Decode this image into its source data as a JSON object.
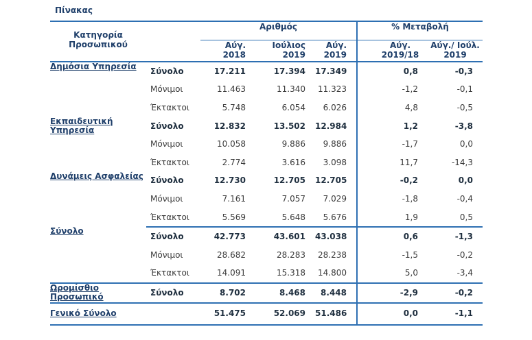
{
  "caption": "Πίνακας",
  "header": {
    "category": "Κατηγορία Προσωπικού",
    "group_number": "Αριθμός",
    "group_change": "% Μεταβολή",
    "col_aug2018": "Αύγ. 2018",
    "col_jul2019": "Ιούλιος 2019",
    "col_aug2019": "Αύγ. 2019",
    "col_pct_yoy": "Αύγ. 2019/18",
    "col_pct_mom": "Αύγ./ Ιούλ. 2019"
  },
  "sections": [
    {
      "category": "Δημόσια Υπηρεσία",
      "rows": [
        {
          "label": "Σύνολο",
          "aug2018": "17.211",
          "jul2019": "17.394",
          "aug2019": "17.349",
          "pct_yoy": "0,8",
          "pct_mom": "-0,3"
        },
        {
          "label": "Μόνιμοι",
          "aug2018": "11.463",
          "jul2019": "11.340",
          "aug2019": "11.323",
          "pct_yoy": "-1,2",
          "pct_mom": "-0,1"
        },
        {
          "label": "Έκτακτοι",
          "aug2018": "5.748",
          "jul2019": "6.054",
          "aug2019": "6.026",
          "pct_yoy": "4,8",
          "pct_mom": "-0,5"
        }
      ]
    },
    {
      "category": "Εκπαιδευτική Υπηρεσία",
      "rows": [
        {
          "label": "Σύνολο",
          "aug2018": "12.832",
          "jul2019": "13.502",
          "aug2019": "12.984",
          "pct_yoy": "1,2",
          "pct_mom": "-3,8"
        },
        {
          "label": "Μόνιμοι",
          "aug2018": "10.058",
          "jul2019": "9.886",
          "aug2019": "9.886",
          "pct_yoy": "-1,7",
          "pct_mom": "0,0"
        },
        {
          "label": "Έκτακτοι",
          "aug2018": "2.774",
          "jul2019": "3.616",
          "aug2019": "3.098",
          "pct_yoy": "11,7",
          "pct_mom": "-14,3"
        }
      ]
    },
    {
      "category": "Δυνάμεις Ασφαλείας",
      "rows": [
        {
          "label": "Σύνολο",
          "aug2018": "12.730",
          "jul2019": "12.705",
          "aug2019": "12.705",
          "pct_yoy": "-0,2",
          "pct_mom": "0,0"
        },
        {
          "label": "Μόνιμοι",
          "aug2018": "7.161",
          "jul2019": "7.057",
          "aug2019": "7.029",
          "pct_yoy": "-1,8",
          "pct_mom": "-0,4"
        },
        {
          "label": "Έκτακτοι",
          "aug2018": "5.569",
          "jul2019": "5.648",
          "aug2019": "5.676",
          "pct_yoy": "1,9",
          "pct_mom": "0,5"
        }
      ]
    },
    {
      "category": "Σύνολο",
      "rows": [
        {
          "label": "Σύνολο",
          "aug2018": "42.773",
          "jul2019": "43.601",
          "aug2019": "43.038",
          "pct_yoy": "0,6",
          "pct_mom": "-1,3"
        },
        {
          "label": "Μόνιμοι",
          "aug2018": "28.682",
          "jul2019": "28.283",
          "aug2019": "28.238",
          "pct_yoy": "-1,5",
          "pct_mom": "-0,2"
        },
        {
          "label": "Έκτακτοι",
          "aug2018": "14.091",
          "jul2019": "15.318",
          "aug2019": "14.800",
          "pct_yoy": "5,0",
          "pct_mom": "-3,4"
        }
      ]
    },
    {
      "category": "Ωρομίσθιο Προσωπικό",
      "rows": [
        {
          "label": "Σύνολο",
          "aug2018": "8.702",
          "jul2019": "8.468",
          "aug2019": "8.448",
          "pct_yoy": "-2,9",
          "pct_mom": "-0,2"
        }
      ]
    }
  ],
  "grand_total": {
    "label": "Γενικό Σύνολο",
    "aug2018": "51.475",
    "jul2019": "52.069",
    "aug2019": "51.486",
    "pct_yoy": "0,0",
    "pct_mom": "-1,1"
  }
}
